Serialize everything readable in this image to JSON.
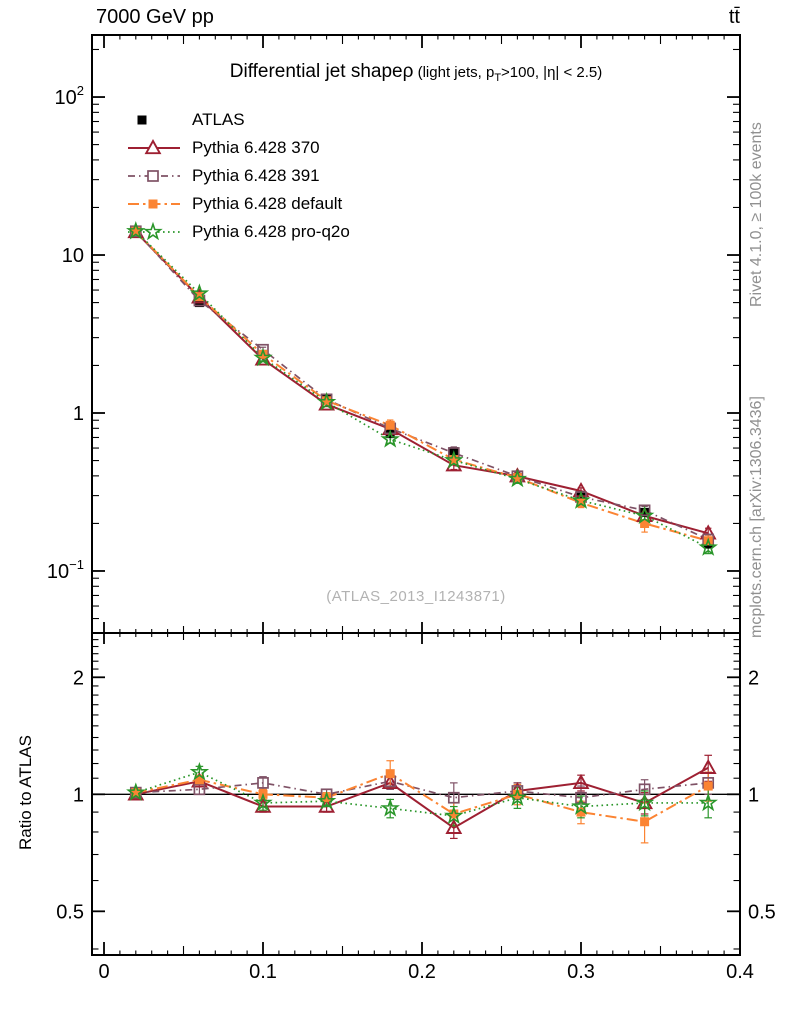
{
  "header": {
    "left": "7000 GeV pp",
    "right": "tt̄"
  },
  "plot_title": {
    "main": "Differential jet shapeρ",
    "paren_pre": " (light jets, p",
    "paren_sub": "T",
    "paren_post": ">100, |η| < 2.5)"
  },
  "watermark": "(ATLAS_2013_I1243871)",
  "side_notes": {
    "top_right": "Rivet 4.1.0, ≥ 100k events",
    "bottom_right": "mcplots.cern.ch [arXiv:1306.3436]"
  },
  "ratio_ylabel": "Ratio to ATLAS",
  "colors": {
    "frame": "#000000",
    "atlas": "#000000",
    "pythia_370": "#9e2032",
    "pythia_391": "#7f5266",
    "pythia_default": "#fb8433",
    "pythia_proq2o": "#2a962a",
    "gray_text": "#909090",
    "watermark": "#b2b2b2"
  },
  "chart_data": {
    "type": "line",
    "title": "Differential jet shapeρ (light jets, pT>100, |η| < 2.5)",
    "xlabel": "",
    "ylabel_ratio": "Ratio to ATLAS",
    "xlim": [
      -0.00755,
      0.4
    ],
    "x_tick_labels": [
      {
        "v": 0.0,
        "label": "0"
      },
      {
        "v": 0.1,
        "label": "0.1"
      },
      {
        "v": 0.2,
        "label": "0.2"
      },
      {
        "v": 0.3,
        "label": "0.3"
      },
      {
        "v": 0.4,
        "label": "0.4"
      }
    ],
    "x_medium_step": 0.05,
    "x_minor_step": 0.01,
    "main_panel": {
      "yscale": "log",
      "ylim": [
        0.0405,
        247
      ],
      "ytick_labels": [
        {
          "v": 100,
          "base": "10",
          "sup": "2"
        },
        {
          "v": 10,
          "base": "10",
          "sup": ""
        },
        {
          "v": 1,
          "base": "1",
          "sup": ""
        },
        {
          "v": 0.1,
          "base": "10",
          "sup": "−1"
        }
      ]
    },
    "ratio_panel": {
      "yscale": "log",
      "ylim": [
        0.386,
        2.6
      ],
      "ref_line": 1,
      "ytick_labels": [
        {
          "v": 2,
          "label": "2"
        },
        {
          "v": 1,
          "label": "1"
        },
        {
          "v": 0.5,
          "label": "0.5"
        }
      ],
      "minor_from": 0.4,
      "minor_to": 2.5,
      "minor_step": 0.1
    },
    "x": [
      0.02,
      0.06,
      0.1,
      0.14,
      0.18,
      0.22,
      0.26,
      0.3,
      0.34,
      0.38
    ],
    "atlas": {
      "name": "ATLAS",
      "color": "#000000",
      "marker": "square-filled",
      "values": [
        14.0,
        5.0,
        2.35,
        1.22,
        0.74,
        0.57,
        0.39,
        0.3,
        0.235,
        0.148
      ],
      "rel_err": [
        0.015,
        0.02,
        0.02,
        0.02,
        0.03,
        0.03,
        0.035,
        0.04,
        0.045,
        0.05
      ]
    },
    "series": [
      {
        "name": "Pythia 6.428 370",
        "color": "#9e2032",
        "marker": "triangle-open",
        "dash": "solid",
        "width": 2,
        "ratio": [
          1.0,
          1.08,
          0.93,
          0.93,
          1.07,
          0.82,
          1.02,
          1.07,
          0.95,
          1.17
        ],
        "ratio_err": [
          0.02,
          0.03,
          0.03,
          0.03,
          0.04,
          0.05,
          0.05,
          0.05,
          0.06,
          0.09
        ]
      },
      {
        "name": "Pythia 6.428 391",
        "color": "#7f5266",
        "marker": "square-open",
        "dash": "dashdot",
        "width": 1.7,
        "ratio": [
          1.01,
          1.03,
          1.07,
          1.0,
          1.08,
          0.98,
          1.02,
          0.98,
          1.03,
          1.07
        ],
        "ratio_err": [
          0.02,
          0.03,
          0.04,
          0.03,
          0.05,
          0.09,
          0.05,
          0.07,
          0.06,
          0.07
        ]
      },
      {
        "name": "Pythia 6.428 default",
        "color": "#fb8433",
        "marker": "square-filled",
        "dash": "longdashdot",
        "width": 2,
        "ratio": [
          1.01,
          1.09,
          1.0,
          0.98,
          1.13,
          0.89,
          1.0,
          0.9,
          0.85,
          1.05
        ],
        "ratio_err": [
          0.02,
          0.03,
          0.03,
          0.03,
          0.09,
          0.06,
          0.06,
          0.06,
          0.1,
          0.09
        ]
      },
      {
        "name": "Pythia 6.428 pro-q2o",
        "color": "#2a962a",
        "marker": "star-open",
        "dash": "dotted",
        "width": 1.7,
        "ratio": [
          1.01,
          1.14,
          0.95,
          0.96,
          0.92,
          0.88,
          0.98,
          0.93,
          0.95,
          0.95
        ],
        "ratio_err": [
          0.02,
          0.04,
          0.04,
          0.03,
          0.05,
          0.05,
          0.06,
          0.06,
          0.07,
          0.08
        ]
      }
    ],
    "legend": [
      "ATLAS",
      "Pythia 6.428 370",
      "Pythia 6.428 391",
      "Pythia 6.428 default",
      "Pythia 6.428 pro-q2o"
    ]
  }
}
